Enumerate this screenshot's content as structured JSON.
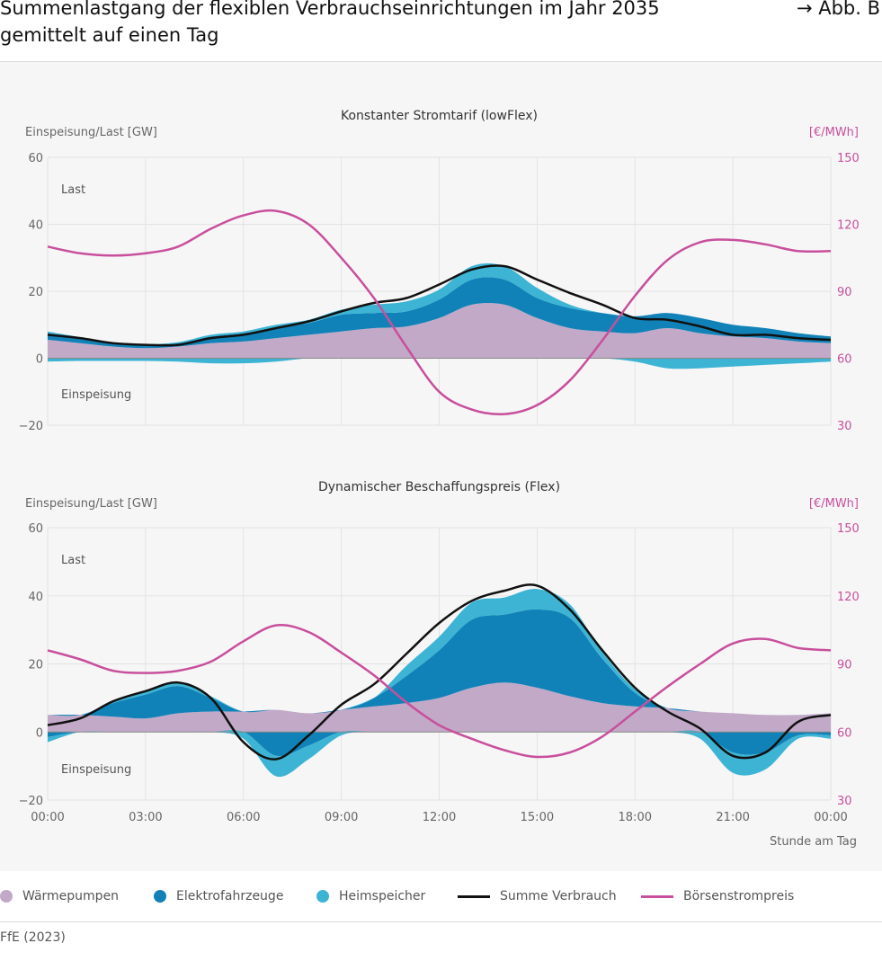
{
  "header": {
    "title": "Summenlastgang der flexiblen Verbrauchseinrichtungen im Jahr 2035\ngemittelt auf einen Tag",
    "figure_ref": "→ Abb. B"
  },
  "colors": {
    "waermepumpen": "#c2a9c8",
    "elektrofahrzeuge": "#1182b8",
    "heimspeicher": "#3db4d4",
    "summe": "#111111",
    "preis": "#c84f9c",
    "grid": "#e3e3e3",
    "axis_text": "#666666"
  },
  "chart_data": [
    {
      "type": "area",
      "title": "Konstanter Stromtarif (lowFlex)",
      "ylabel_left": "Einspeisung/Last [GW]",
      "ylabel_right": "[€/MWh]",
      "ylim_left": [
        -20,
        60
      ],
      "ylim_right": [
        30,
        150
      ],
      "yticks_left": [
        "60",
        "40",
        "20",
        "0",
        "−20"
      ],
      "yticks_right": [
        "150",
        "120",
        "90",
        "60",
        "30"
      ],
      "annotation_top": "Last",
      "annotation_bottom": "Einspeisung",
      "x_hours": [
        0,
        1,
        2,
        3,
        4,
        5,
        6,
        7,
        8,
        9,
        10,
        11,
        12,
        13,
        14,
        15,
        16,
        17,
        18,
        19,
        20,
        21,
        22,
        23,
        24
      ],
      "series": [
        {
          "name": "Wärmepumpen",
          "values": [
            5.5,
            4.5,
            3.5,
            3,
            3.5,
            4.5,
            5,
            6,
            7,
            8,
            9,
            9.5,
            12,
            16,
            16,
            12,
            9,
            8,
            7.5,
            9,
            7.5,
            6.5,
            6,
            5,
            4.5
          ]
        },
        {
          "name": "Elektrofahrzeuge",
          "values": [
            2,
            1.5,
            1,
            1,
            1,
            2,
            2.5,
            3,
            3.5,
            5,
            4.5,
            4.5,
            5.5,
            7.5,
            7.5,
            6,
            6,
            5.5,
            5,
            4.5,
            4.5,
            3.5,
            3,
            2.5,
            2
          ]
        },
        {
          "name": "Heimspeicher",
          "values": [
            0.5,
            0.3,
            0.2,
            0.2,
            0.3,
            0.5,
            0.5,
            1,
            1,
            1.5,
            2.5,
            3,
            3,
            4,
            4,
            3,
            1,
            0,
            0,
            0,
            0,
            0,
            0,
            0,
            0
          ]
        },
        {
          "name": "Heimspeicher Einspeisung",
          "values": [
            -1,
            -0.8,
            -0.8,
            -0.8,
            -1,
            -1.5,
            -1.5,
            -1,
            0,
            0,
            0,
            0,
            0,
            0,
            0,
            0,
            0,
            0,
            -1,
            -3,
            -3,
            -2.5,
            -2,
            -1.5,
            -1
          ]
        },
        {
          "name": "Summe Verbrauch",
          "values": [
            7,
            6,
            4.5,
            4,
            4,
            6,
            7,
            9,
            11,
            14,
            16.5,
            18,
            22,
            26.5,
            27.5,
            23.5,
            19.5,
            16,
            12,
            11.5,
            9.5,
            7,
            7,
            6,
            5.5
          ]
        },
        {
          "name": "Börsenstrompreis",
          "values": [
            110,
            107,
            106,
            107,
            110,
            118,
            124,
            126,
            120,
            105,
            87,
            65,
            45,
            37,
            35,
            39,
            50,
            68,
            88,
            104,
            112,
            113,
            111,
            108,
            108
          ]
        }
      ]
    },
    {
      "type": "area",
      "title": "Dynamischer Beschaffungspreis (Flex)",
      "ylabel_left": "Einspeisung/Last [GW]",
      "ylabel_right": "[€/MWh]",
      "ylim_left": [
        -20,
        60
      ],
      "ylim_right": [
        30,
        150
      ],
      "yticks_left": [
        "60",
        "40",
        "20",
        "0",
        "−20"
      ],
      "yticks_right": [
        "150",
        "120",
        "90",
        "60",
        "30"
      ],
      "annotation_top": "Last",
      "annotation_bottom": "Einspeisung",
      "xlabel": "Stunde am Tag",
      "x_ticklabels": [
        "00:00",
        "03:00",
        "06:00",
        "09:00",
        "12:00",
        "15:00",
        "18:00",
        "21:00",
        "00:00"
      ],
      "x_hours": [
        0,
        1,
        2,
        3,
        4,
        5,
        6,
        7,
        8,
        9,
        10,
        11,
        12,
        13,
        14,
        15,
        16,
        17,
        18,
        19,
        20,
        21,
        22,
        23,
        24
      ],
      "series": [
        {
          "name": "Wärmepumpen",
          "values": [
            5,
            5,
            4.5,
            4,
            5.5,
            6,
            6,
            6.5,
            5.5,
            6.5,
            7.5,
            8.5,
            10,
            13,
            14.5,
            13,
            10.5,
            8.5,
            7.5,
            7,
            6,
            5.5,
            5,
            5,
            5.5
          ]
        },
        {
          "name": "Elektrofahrzeuge",
          "values": [
            -1.5,
            0,
            4,
            7,
            8,
            4,
            0,
            -7,
            -4,
            0,
            2.5,
            8,
            14,
            20,
            20,
            23,
            23,
            13,
            4,
            0,
            0,
            -6,
            -6,
            -1,
            -1
          ]
        },
        {
          "name": "Heimspeicher",
          "values": [
            -1.5,
            0,
            0.5,
            1,
            1,
            0.5,
            -2,
            -6,
            -4,
            -1,
            0,
            3,
            4,
            5,
            5,
            6,
            4,
            2,
            1,
            0,
            -2,
            -6,
            -5,
            -1,
            -1
          ]
        },
        {
          "name": "Summe Verbrauch",
          "values": [
            2,
            4,
            9,
            12,
            14.5,
            10,
            -3,
            -8,
            -1,
            8,
            14,
            23,
            32,
            38.5,
            41.5,
            43,
            36,
            24,
            13,
            6,
            1,
            -7,
            -6,
            3,
            5
          ]
        },
        {
          "name": "Börsenstrompreis",
          "values": [
            96,
            92,
            87,
            86,
            87,
            91,
            100,
            107,
            104,
            95,
            85,
            73,
            63,
            57,
            52,
            49,
            51,
            58,
            69,
            80,
            90,
            99,
            101,
            97,
            96
          ]
        }
      ]
    }
  ],
  "legend": {
    "items": [
      "Wärmepumpen",
      "Elektrofahrzeuge",
      "Heimspeicher",
      "Summe Verbrauch",
      "Börsenstrompreis"
    ]
  },
  "source": "FfE (2023)"
}
